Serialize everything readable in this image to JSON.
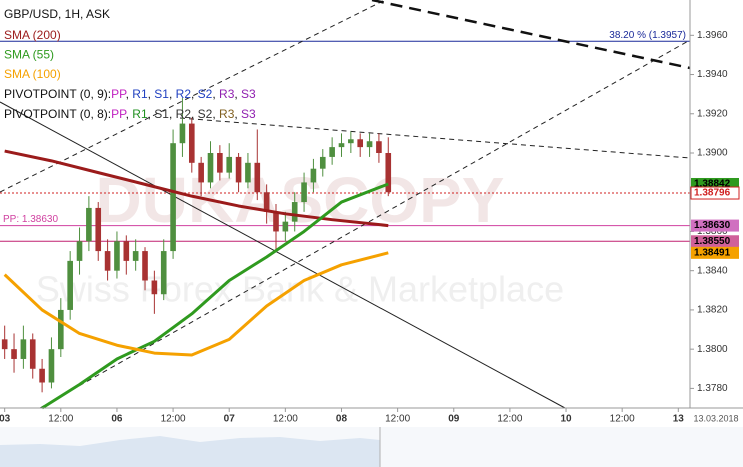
{
  "chart_data": {
    "type": "candlestick",
    "title": "GBP/USD, 1H, ASK",
    "watermark": [
      "DUKASCOPY",
      "Swiss Forex Bank & Marketplace"
    ],
    "xlim": [
      -1,
      146.5
    ],
    "ylim": [
      1.377,
      1.3978
    ],
    "xticks": [
      {
        "value": 0,
        "label": "03"
      },
      {
        "value": 12,
        "label": "12:00"
      },
      {
        "value": 24,
        "label": "06"
      },
      {
        "value": 36,
        "label": "12:00"
      },
      {
        "value": 48,
        "label": "07"
      },
      {
        "value": 60,
        "label": "12:00"
      },
      {
        "value": 72,
        "label": "08"
      },
      {
        "value": 84,
        "label": "12:00"
      },
      {
        "value": 96,
        "label": "09"
      },
      {
        "value": 108,
        "label": "12:00"
      },
      {
        "value": 120,
        "label": "10"
      },
      {
        "value": 132,
        "label": "12:00"
      },
      {
        "value": 144,
        "label": "13"
      }
    ],
    "date_label": "13.03.2018",
    "yticks": [
      {
        "value": 1.378,
        "label": "1.3780"
      },
      {
        "value": 1.38,
        "label": "1.3800"
      },
      {
        "value": 1.382,
        "label": "1.3820"
      },
      {
        "value": 1.384,
        "label": "1.3840"
      },
      {
        "value": 1.386,
        "label": "1.3860"
      },
      {
        "value": 1.388,
        "label": "1.3880"
      },
      {
        "value": 1.39,
        "label": "1.3900"
      },
      {
        "value": 1.392,
        "label": "1.3920"
      },
      {
        "value": 1.394,
        "label": "1.3940"
      },
      {
        "value": 1.396,
        "label": "1.3960"
      }
    ],
    "candles": {
      "up_color": "#4f8f3f",
      "down_color": "#a83232",
      "x": [
        0,
        2,
        4,
        6,
        8,
        10,
        12,
        14,
        16,
        18,
        20,
        22,
        24,
        26,
        28,
        30,
        32,
        34,
        36,
        38,
        40,
        42,
        44,
        46,
        48,
        50,
        52,
        54,
        56,
        58,
        60,
        62,
        64,
        66,
        68,
        70,
        72,
        74,
        76,
        78,
        80,
        82
      ],
      "values": [
        [
          1.3805,
          1.3812,
          1.3795,
          1.38
        ],
        [
          1.38,
          1.3808,
          1.3788,
          1.3795
        ],
        [
          1.3795,
          1.3812,
          1.379,
          1.3805
        ],
        [
          1.3805,
          1.3808,
          1.3785,
          1.379
        ],
        [
          1.379,
          1.3795,
          1.3778,
          1.3783
        ],
        [
          1.3783,
          1.3806,
          1.378,
          1.38
        ],
        [
          1.38,
          1.3826,
          1.3796,
          1.382
        ],
        [
          1.382,
          1.385,
          1.3815,
          1.3845
        ],
        [
          1.3845,
          1.3862,
          1.3838,
          1.3855
        ],
        [
          1.3855,
          1.3878,
          1.385,
          1.3872
        ],
        [
          1.3872,
          1.3875,
          1.3845,
          1.385
        ],
        [
          1.385,
          1.3856,
          1.3835,
          1.384
        ],
        [
          1.384,
          1.386,
          1.3836,
          1.3855
        ],
        [
          1.3855,
          1.3858,
          1.3838,
          1.3845
        ],
        [
          1.3845,
          1.3856,
          1.384,
          1.385
        ],
        [
          1.385,
          1.3852,
          1.383,
          1.3835
        ],
        [
          1.3835,
          1.384,
          1.3818,
          1.3828
        ],
        [
          1.3828,
          1.3856,
          1.3825,
          1.385
        ],
        [
          1.385,
          1.3912,
          1.3846,
          1.3905
        ],
        [
          1.3905,
          1.3928,
          1.3898,
          1.3915
        ],
        [
          1.3915,
          1.3918,
          1.389,
          1.3895
        ],
        [
          1.3895,
          1.3898,
          1.3878,
          1.3885
        ],
        [
          1.3885,
          1.3906,
          1.3882,
          1.39
        ],
        [
          1.39,
          1.3904,
          1.3886,
          1.389
        ],
        [
          1.389,
          1.3905,
          1.3887,
          1.3898
        ],
        [
          1.3898,
          1.39,
          1.388,
          1.3885
        ],
        [
          1.3885,
          1.39,
          1.3882,
          1.3895
        ],
        [
          1.3895,
          1.3912,
          1.3876,
          1.388
        ],
        [
          1.388,
          1.3884,
          1.3864,
          1.387
        ],
        [
          1.387,
          1.3874,
          1.385,
          1.386
        ],
        [
          1.386,
          1.387,
          1.3855,
          1.3865
        ],
        [
          1.3865,
          1.388,
          1.386,
          1.3875
        ],
        [
          1.3875,
          1.389,
          1.387,
          1.3885
        ],
        [
          1.3885,
          1.3897,
          1.388,
          1.3892
        ],
        [
          1.3892,
          1.3902,
          1.3888,
          1.3898
        ],
        [
          1.3898,
          1.3908,
          1.3894,
          1.3903
        ],
        [
          1.3903,
          1.391,
          1.3898,
          1.3905
        ],
        [
          1.3905,
          1.3911,
          1.39,
          1.3907
        ],
        [
          1.3907,
          1.391,
          1.3898,
          1.3903
        ],
        [
          1.3903,
          1.391,
          1.3898,
          1.3906
        ],
        [
          1.3906,
          1.391,
          1.3895,
          1.39
        ],
        [
          1.39,
          1.3908,
          1.3878,
          1.388
        ]
      ]
    },
    "series": [
      {
        "name": "SMA (200)",
        "color": "#9b1b1b",
        "x": [
          0,
          10,
          20,
          30,
          40,
          50,
          60,
          70,
          82
        ],
        "values": [
          1.3901,
          1.3896,
          1.389,
          1.3884,
          1.3878,
          1.3873,
          1.3869,
          1.3866,
          1.3863
        ]
      },
      {
        "name": "SMA (55)",
        "color": "#2f9a1f",
        "x": [
          8,
          16,
          24,
          32,
          40,
          48,
          56,
          64,
          72,
          82
        ],
        "values": [
          1.377,
          1.3782,
          1.3795,
          1.3804,
          1.3818,
          1.3835,
          1.3847,
          1.386,
          1.3875,
          1.38842
        ]
      },
      {
        "name": "SMA (100)",
        "color": "#f5a100",
        "x": [
          0,
          8,
          16,
          24,
          32,
          40,
          48,
          56,
          64,
          72,
          82
        ],
        "values": [
          1.3838,
          1.382,
          1.3808,
          1.3802,
          1.3798,
          1.3797,
          1.3805,
          1.3822,
          1.3835,
          1.3843,
          1.38491
        ]
      }
    ],
    "pivot_legends": [
      {
        "label": "PIVOTPOINT (0, 9):",
        "separator": ", ",
        "items": [
          {
            "text": "PP",
            "color": "#c020c0"
          },
          {
            "text": "R1",
            "color": "#2040c0"
          },
          {
            "text": "S1",
            "color": "#2040c0"
          },
          {
            "text": "R2",
            "color": "#2040c0"
          },
          {
            "text": "S2",
            "color": "#2040c0"
          },
          {
            "text": "R3",
            "color": "#9020b0"
          },
          {
            "text": "S3",
            "color": "#9020b0"
          }
        ]
      },
      {
        "label": "PIVOTPOINT (0, 8):",
        "separator": ", ",
        "items": [
          {
            "text": "PP",
            "color": "#c020c0"
          },
          {
            "text": "R1",
            "color": "#209020"
          },
          {
            "text": "S1",
            "color": "#333333"
          },
          {
            "text": "R2",
            "color": "#333333"
          },
          {
            "text": "S2",
            "color": "#333333"
          },
          {
            "text": "R3",
            "color": "#806020"
          },
          {
            "text": "S3",
            "color": "#9020b0"
          }
        ]
      }
    ],
    "levels": [
      {
        "value": 1.3957,
        "label": "38.20 % (1.3957)",
        "color": "#1a2a9a",
        "style": "solid"
      },
      {
        "value": 1.38796,
        "color": "#d02020",
        "style": "dotted"
      },
      {
        "value": 1.3863,
        "label": "PP: 1.38630",
        "color": "#d040a0",
        "style": "solid"
      },
      {
        "value": 1.3855,
        "color": "#c02070",
        "style": "solid"
      }
    ],
    "price_labels": [
      {
        "value": 1.38842,
        "bg": "#2f9a1f",
        "fg": "#000000"
      },
      {
        "value": 1.38796,
        "bg": "#ffffff",
        "fg": "#d02020"
      },
      {
        "value": {
          "value": 1.3863,
          "label": "1.38630"
        },
        "bg": "#d070c0",
        "fg": "#000000"
      },
      {
        "value": {
          "value": 1.3855,
          "label": "1.38550"
        },
        "bg": "#d0609a",
        "fg": "#000000"
      },
      {
        "value": 1.38491,
        "bg": "#f5a100",
        "fg": "#000000"
      }
    ]
  }
}
